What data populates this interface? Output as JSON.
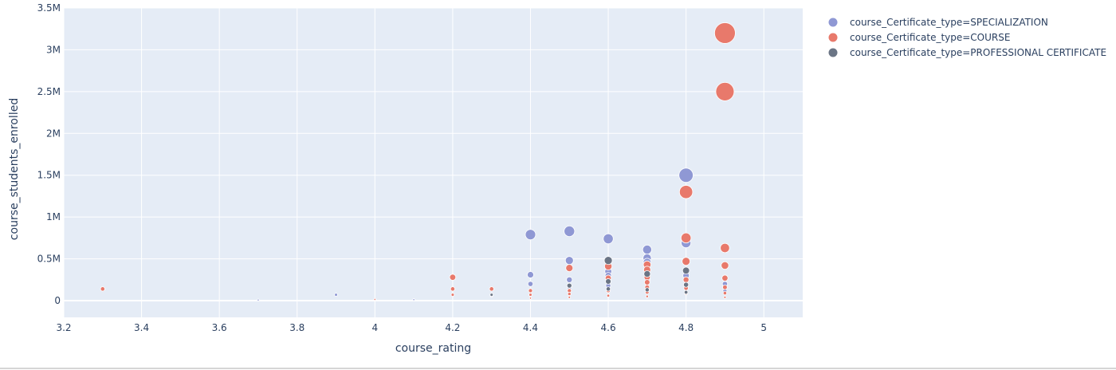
{
  "chart_data": {
    "type": "scatter",
    "title": "",
    "xlabel": "course_rating",
    "ylabel": "course_students_enrolled",
    "xlim": [
      3.2,
      5.1
    ],
    "ylim": [
      -200000,
      3500000
    ],
    "x_ticks": [
      3.2,
      3.4,
      3.6,
      3.8,
      4,
      4.2,
      4.4,
      4.6,
      4.8,
      5
    ],
    "x_tick_labels": [
      "3.2",
      "3.4",
      "3.6",
      "3.8",
      "4",
      "4.2",
      "4.4",
      "4.6",
      "4.8",
      "5"
    ],
    "y_ticks": [
      0,
      500000,
      1000000,
      1500000,
      2000000,
      2500000,
      3000000,
      3500000
    ],
    "y_tick_labels": [
      "0",
      "0.5M",
      "1M",
      "1.5M",
      "2M",
      "2.5M",
      "3M",
      "3.5M"
    ],
    "grid": true,
    "legend_position": "top-right",
    "size_reference_max": 3200000,
    "series": [
      {
        "name": "course_Certificate_type=SPECIALIZATION",
        "color": "#8f98d4",
        "points": [
          {
            "x": 3.7,
            "y": 8000
          },
          {
            "x": 3.9,
            "y": 70000
          },
          {
            "x": 4.1,
            "y": 12000
          },
          {
            "x": 4.3,
            "y": 60000
          },
          {
            "x": 4.4,
            "y": 790000
          },
          {
            "x": 4.4,
            "y": 310000
          },
          {
            "x": 4.4,
            "y": 200000
          },
          {
            "x": 4.5,
            "y": 830000
          },
          {
            "x": 4.5,
            "y": 480000
          },
          {
            "x": 4.5,
            "y": 250000
          },
          {
            "x": 4.5,
            "y": 160000
          },
          {
            "x": 4.6,
            "y": 740000
          },
          {
            "x": 4.6,
            "y": 350000
          },
          {
            "x": 4.6,
            "y": 300000
          },
          {
            "x": 4.6,
            "y": 180000
          },
          {
            "x": 4.7,
            "y": 610000
          },
          {
            "x": 4.7,
            "y": 510000
          },
          {
            "x": 4.7,
            "y": 460000
          },
          {
            "x": 4.7,
            "y": 250000
          },
          {
            "x": 4.8,
            "y": 1500000
          },
          {
            "x": 4.8,
            "y": 690000
          },
          {
            "x": 4.8,
            "y": 300000
          },
          {
            "x": 4.9,
            "y": 200000
          },
          {
            "x": 4.9,
            "y": 120000
          }
        ]
      },
      {
        "name": "course_Certificate_type=COURSE",
        "color": "#e8796b",
        "points": [
          {
            "x": 3.3,
            "y": 140000
          },
          {
            "x": 4.0,
            "y": 15000
          },
          {
            "x": 4.2,
            "y": 280000
          },
          {
            "x": 4.2,
            "y": 140000
          },
          {
            "x": 4.2,
            "y": 70000
          },
          {
            "x": 4.3,
            "y": 140000
          },
          {
            "x": 4.4,
            "y": 120000
          },
          {
            "x": 4.4,
            "y": 70000
          },
          {
            "x": 4.4,
            "y": 30000
          },
          {
            "x": 4.5,
            "y": 390000
          },
          {
            "x": 4.5,
            "y": 120000
          },
          {
            "x": 4.5,
            "y": 80000
          },
          {
            "x": 4.5,
            "y": 40000
          },
          {
            "x": 4.6,
            "y": 410000
          },
          {
            "x": 4.6,
            "y": 270000
          },
          {
            "x": 4.6,
            "y": 120000
          },
          {
            "x": 4.6,
            "y": 60000
          },
          {
            "x": 4.7,
            "y": 430000
          },
          {
            "x": 4.7,
            "y": 370000
          },
          {
            "x": 4.7,
            "y": 280000
          },
          {
            "x": 4.7,
            "y": 220000
          },
          {
            "x": 4.7,
            "y": 160000
          },
          {
            "x": 4.7,
            "y": 100000
          },
          {
            "x": 4.7,
            "y": 50000
          },
          {
            "x": 4.8,
            "y": 1300000
          },
          {
            "x": 4.8,
            "y": 750000
          },
          {
            "x": 4.8,
            "y": 470000
          },
          {
            "x": 4.8,
            "y": 250000
          },
          {
            "x": 4.8,
            "y": 150000
          },
          {
            "x": 4.8,
            "y": 90000
          },
          {
            "x": 4.9,
            "y": 3200000
          },
          {
            "x": 4.9,
            "y": 2500000
          },
          {
            "x": 4.9,
            "y": 630000
          },
          {
            "x": 4.9,
            "y": 420000
          },
          {
            "x": 4.9,
            "y": 270000
          },
          {
            "x": 4.9,
            "y": 160000
          },
          {
            "x": 4.9,
            "y": 90000
          },
          {
            "x": 4.9,
            "y": 40000
          }
        ]
      },
      {
        "name": "course_Certificate_type=PROFESSIONAL CERTIFICATE",
        "color": "#6b7585",
        "points": [
          {
            "x": 4.3,
            "y": 70000
          },
          {
            "x": 4.5,
            "y": 180000
          },
          {
            "x": 4.6,
            "y": 480000
          },
          {
            "x": 4.6,
            "y": 230000
          },
          {
            "x": 4.6,
            "y": 140000
          },
          {
            "x": 4.7,
            "y": 320000
          },
          {
            "x": 4.7,
            "y": 130000
          },
          {
            "x": 4.8,
            "y": 360000
          },
          {
            "x": 4.8,
            "y": 190000
          },
          {
            "x": 4.8,
            "y": 100000
          }
        ]
      }
    ]
  }
}
